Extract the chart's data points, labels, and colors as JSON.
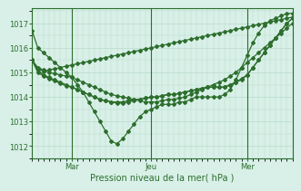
{
  "xlabel": "Pression niveau de la mer( hPa )",
  "background_color": "#d8f0e8",
  "grid_color": "#b8daca",
  "line_color": "#2d6e2d",
  "ylim": [
    1011.5,
    1017.6
  ],
  "yticks": [
    1012,
    1013,
    1014,
    1015,
    1016,
    1017
  ],
  "vlines_x": [
    7,
    21,
    38
  ],
  "vlines_labels": [
    "Mar",
    "Jeu",
    "Mer"
  ],
  "num_points": 47,
  "series": [
    [
      1016.7,
      1016.0,
      1015.8,
      1015.6,
      1015.4,
      1015.2,
      1015.0,
      1014.8,
      1014.5,
      1014.2,
      1013.8,
      1013.4,
      1013.0,
      1012.6,
      1012.2,
      1012.1,
      1012.3,
      1012.6,
      1012.9,
      1013.2,
      1013.4,
      1013.5,
      1013.6,
      1013.7,
      1013.7,
      1013.7,
      1013.8,
      1013.8,
      1013.9,
      1014.0,
      1014.0,
      1014.0,
      1014.0,
      1014.0,
      1014.1,
      1014.3,
      1014.7,
      1015.2,
      1015.7,
      1016.2,
      1016.6,
      1016.9,
      1017.1,
      1017.2,
      1017.3,
      1017.4,
      1017.4
    ],
    [
      1015.5,
      1015.2,
      1015.1,
      1015.0,
      1014.95,
      1014.9,
      1014.85,
      1014.8,
      1014.7,
      1014.6,
      1014.5,
      1014.4,
      1014.3,
      1014.2,
      1014.1,
      1014.05,
      1014.0,
      1013.95,
      1013.9,
      1013.85,
      1013.8,
      1013.8,
      1013.8,
      1013.85,
      1013.9,
      1013.9,
      1013.95,
      1014.0,
      1014.1,
      1014.2,
      1014.3,
      1014.4,
      1014.5,
      1014.6,
      1014.7,
      1014.85,
      1015.0,
      1015.2,
      1015.4,
      1015.6,
      1015.8,
      1016.0,
      1016.2,
      1016.4,
      1016.6,
      1016.8,
      1017.0
    ],
    [
      1015.5,
      1015.1,
      1014.9,
      1014.8,
      1014.7,
      1014.6,
      1014.5,
      1014.4,
      1014.3,
      1014.2,
      1014.1,
      1014.0,
      1013.9,
      1013.85,
      1013.8,
      1013.8,
      1013.8,
      1013.85,
      1013.9,
      1013.9,
      1013.95,
      1014.0,
      1014.0,
      1014.05,
      1014.1,
      1014.1,
      1014.15,
      1014.2,
      1014.25,
      1014.3,
      1014.35,
      1014.4,
      1014.4,
      1014.4,
      1014.4,
      1014.5,
      1014.6,
      1014.7,
      1014.9,
      1015.2,
      1015.5,
      1015.8,
      1016.1,
      1016.4,
      1016.7,
      1017.0,
      1017.2
    ],
    [
      1015.5,
      1015.0,
      1014.85,
      1014.75,
      1014.65,
      1014.55,
      1014.45,
      1014.4,
      1014.3,
      1014.2,
      1014.1,
      1014.0,
      1013.9,
      1013.85,
      1013.8,
      1013.75,
      1013.75,
      1013.8,
      1013.85,
      1013.9,
      1013.95,
      1014.0,
      1014.0,
      1014.05,
      1014.1,
      1014.1,
      1014.15,
      1014.2,
      1014.25,
      1014.3,
      1014.35,
      1014.4,
      1014.4,
      1014.4,
      1014.4,
      1014.5,
      1014.6,
      1014.75,
      1014.9,
      1015.2,
      1015.5,
      1015.8,
      1016.1,
      1016.4,
      1016.7,
      1017.0,
      1017.2
    ],
    [
      1015.5,
      1015.15,
      1015.05,
      1015.1,
      1015.15,
      1015.2,
      1015.25,
      1015.3,
      1015.35,
      1015.4,
      1015.45,
      1015.5,
      1015.55,
      1015.6,
      1015.65,
      1015.7,
      1015.75,
      1015.8,
      1015.85,
      1015.9,
      1015.95,
      1016.0,
      1016.05,
      1016.1,
      1016.15,
      1016.2,
      1016.25,
      1016.3,
      1016.35,
      1016.4,
      1016.45,
      1016.5,
      1016.55,
      1016.6,
      1016.65,
      1016.7,
      1016.75,
      1016.8,
      1016.85,
      1016.9,
      1016.95,
      1017.0,
      1017.05,
      1017.1,
      1017.15,
      1017.2,
      1017.25
    ]
  ]
}
